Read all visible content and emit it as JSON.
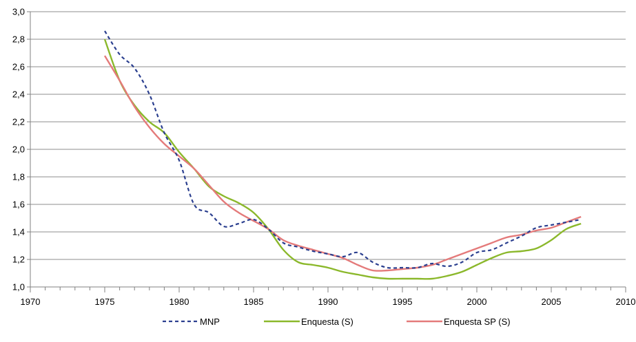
{
  "chart_data": {
    "type": "line",
    "xlim": [
      1970,
      2010
    ],
    "ylim": [
      1.0,
      3.0
    ],
    "x_ticks": [
      1970,
      1975,
      1980,
      1985,
      1990,
      1995,
      2000,
      2005,
      2010
    ],
    "y_ticks": [
      "1,0",
      "1,2",
      "1,4",
      "1,6",
      "1,8",
      "2,0",
      "2,2",
      "2,4",
      "2,6",
      "2,8",
      "3,0"
    ],
    "y_tick_values": [
      1.0,
      1.2,
      1.4,
      1.6,
      1.8,
      2.0,
      2.2,
      2.4,
      2.6,
      2.8,
      3.0
    ],
    "grid": "horizontal",
    "legend_position": "bottom",
    "series": [
      {
        "name": "MNP",
        "color": "#2b3f8f",
        "style": "dashed",
        "x": [
          1975,
          1976,
          1977,
          1978,
          1979,
          1980,
          1981,
          1982,
          1983,
          1984,
          1985,
          1986,
          1987,
          1988,
          1989,
          1990,
          1991,
          1992,
          1993,
          1994,
          1995,
          1996,
          1997,
          1998,
          1999,
          2000,
          2001,
          2002,
          2003,
          2004,
          2005,
          2006,
          2007
        ],
        "y": [
          2.86,
          2.69,
          2.59,
          2.4,
          2.12,
          1.92,
          1.6,
          1.54,
          1.44,
          1.46,
          1.49,
          1.42,
          1.32,
          1.29,
          1.26,
          1.24,
          1.22,
          1.25,
          1.18,
          1.14,
          1.14,
          1.14,
          1.17,
          1.15,
          1.18,
          1.25,
          1.27,
          1.32,
          1.37,
          1.43,
          1.45,
          1.47,
          1.49
        ]
      },
      {
        "name": "Enquesta (S)",
        "color": "#8bb82b",
        "style": "solid",
        "x": [
          1975,
          1976,
          1977,
          1978,
          1979,
          1980,
          1981,
          1982,
          1983,
          1984,
          1985,
          1986,
          1987,
          1988,
          1989,
          1990,
          1991,
          1992,
          1993,
          1994,
          1995,
          1996,
          1997,
          1998,
          1999,
          2000,
          2001,
          2002,
          2003,
          2004,
          2005,
          2006,
          2007
        ],
        "y": [
          2.8,
          2.5,
          2.32,
          2.2,
          2.12,
          1.98,
          1.86,
          1.73,
          1.66,
          1.61,
          1.54,
          1.42,
          1.27,
          1.18,
          1.16,
          1.14,
          1.11,
          1.09,
          1.07,
          1.06,
          1.06,
          1.06,
          1.06,
          1.08,
          1.11,
          1.16,
          1.21,
          1.25,
          1.26,
          1.28,
          1.34,
          1.42,
          1.46
        ]
      },
      {
        "name": "Enquesta SP (S)",
        "color": "#e47a7a",
        "style": "solid",
        "x": [
          1975,
          1976,
          1977,
          1978,
          1979,
          1980,
          1981,
          1982,
          1983,
          1984,
          1985,
          1986,
          1987,
          1988,
          1989,
          1990,
          1991,
          1992,
          1993,
          1994,
          1995,
          1996,
          1997,
          1998,
          1999,
          2000,
          2001,
          2002,
          2003,
          2004,
          2005,
          2006,
          2007
        ],
        "y": [
          2.68,
          2.5,
          2.31,
          2.16,
          2.04,
          1.95,
          1.86,
          1.74,
          1.62,
          1.54,
          1.48,
          1.42,
          1.34,
          1.3,
          1.27,
          1.24,
          1.21,
          1.16,
          1.12,
          1.12,
          1.13,
          1.14,
          1.16,
          1.2,
          1.24,
          1.28,
          1.32,
          1.36,
          1.38,
          1.41,
          1.43,
          1.47,
          1.51
        ]
      }
    ]
  }
}
